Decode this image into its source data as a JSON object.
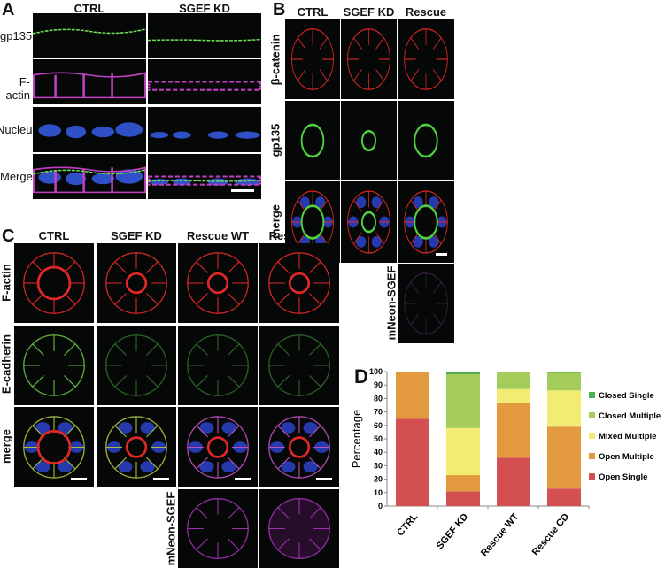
{
  "panels": {
    "A": {
      "label": "A",
      "columns": [
        "CTRL",
        "SGEF KD"
      ],
      "rows": [
        "gp135",
        "F-actin",
        "Nucleus",
        "Merge"
      ]
    },
    "B": {
      "label": "B",
      "columns": [
        "CTRL",
        "SGEF KD",
        "Rescue WT"
      ],
      "rows": [
        "β-catenin",
        "gp135",
        "merge"
      ],
      "extra_row": "mNeon-SGEF"
    },
    "C": {
      "label": "C",
      "columns": [
        "CTRL",
        "SGEF KD",
        "Rescue WT",
        "Rescue CD"
      ],
      "rows": [
        "F-actin",
        "E-cadherin",
        "merge"
      ],
      "extra_row": "mNeon-SGEF"
    },
    "D": {
      "label": "D"
    }
  },
  "chart_data": {
    "type": "bar",
    "stacked": true,
    "categories": [
      "CTRL",
      "SGEF KD",
      "Rescue WT",
      "Rescue CD"
    ],
    "ylabel": "Percentage",
    "xlabel": "",
    "ylim": [
      0,
      100
    ],
    "yticks": [
      0,
      10,
      20,
      30,
      40,
      50,
      60,
      70,
      80,
      90,
      100
    ],
    "legend_position": "right",
    "grid": false,
    "series": [
      {
        "name": "Open Single",
        "color": "#d44f4f",
        "values": [
          65,
          11,
          36,
          13
        ]
      },
      {
        "name": "Open Multiple",
        "color": "#e39a3e",
        "values": [
          35,
          12,
          41,
          46
        ]
      },
      {
        "name": "Mixed Multiple",
        "color": "#f2ec73",
        "values": [
          0,
          35,
          10,
          27
        ]
      },
      {
        "name": "Closed Multiple",
        "color": "#a3cc5a",
        "values": [
          0,
          40,
          13,
          13
        ]
      },
      {
        "name": "Closed Single",
        "color": "#4fae4f",
        "values": [
          0,
          2,
          0,
          1
        ]
      }
    ]
  }
}
